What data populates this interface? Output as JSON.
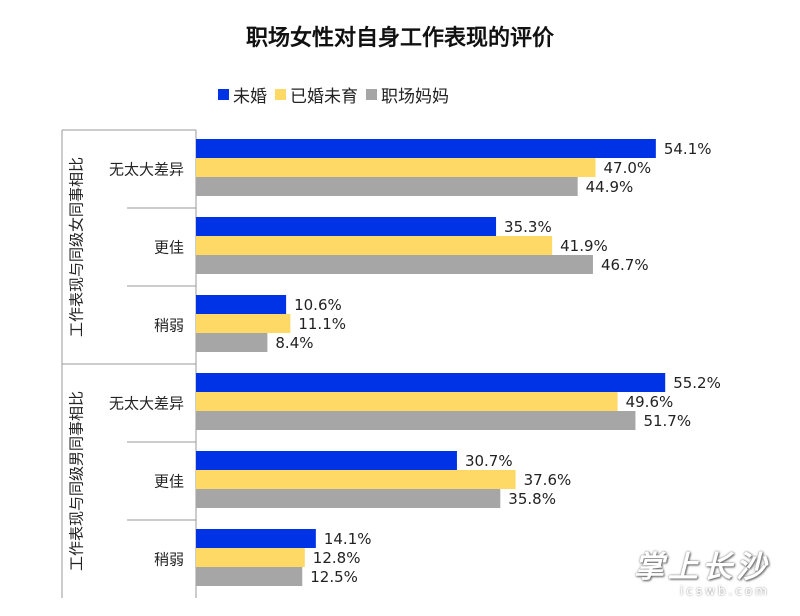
{
  "chart_data": {
    "type": "bar",
    "orientation": "horizontal",
    "title": "职场女性对自身工作表现的评价",
    "legend_position": "top",
    "grid": false,
    "xlim": [
      0,
      70
    ],
    "series": [
      {
        "name": "未婚",
        "color": "#0033E6"
      },
      {
        "name": "已婚未育",
        "color": "#FFD966"
      },
      {
        "name": "职场妈妈",
        "color": "#A6A6A6"
      }
    ],
    "groups": [
      {
        "label": "工作表现与同级女同事相比",
        "categories": [
          {
            "label": "无太大差异",
            "values": [
              54.1,
              47.0,
              44.9
            ],
            "labels": [
              "54.1%",
              "47.0%",
              "44.9%"
            ]
          },
          {
            "label": "更佳",
            "values": [
              35.3,
              41.9,
              46.7
            ],
            "labels": [
              "35.3%",
              "41.9%",
              "46.7%"
            ]
          },
          {
            "label": "稍弱",
            "values": [
              10.6,
              11.1,
              8.4
            ],
            "labels": [
              "10.6%",
              "11.1%",
              "8.4%"
            ]
          }
        ]
      },
      {
        "label": "工作表现与同级男同事相比",
        "categories": [
          {
            "label": "无太大差异",
            "values": [
              55.2,
              49.6,
              51.7
            ],
            "labels": [
              "55.2%",
              "49.6%",
              "51.7%"
            ]
          },
          {
            "label": "更佳",
            "values": [
              30.7,
              37.6,
              35.8
            ],
            "labels": [
              "30.7%",
              "37.6%",
              "35.8%"
            ]
          },
          {
            "label": "稍弱",
            "values": [
              14.1,
              12.8,
              12.5
            ],
            "labels": [
              "14.1%",
              "12.8%",
              "12.5%"
            ]
          }
        ]
      }
    ]
  },
  "watermark": {
    "text": "掌上长沙",
    "url": "icswb.com"
  }
}
